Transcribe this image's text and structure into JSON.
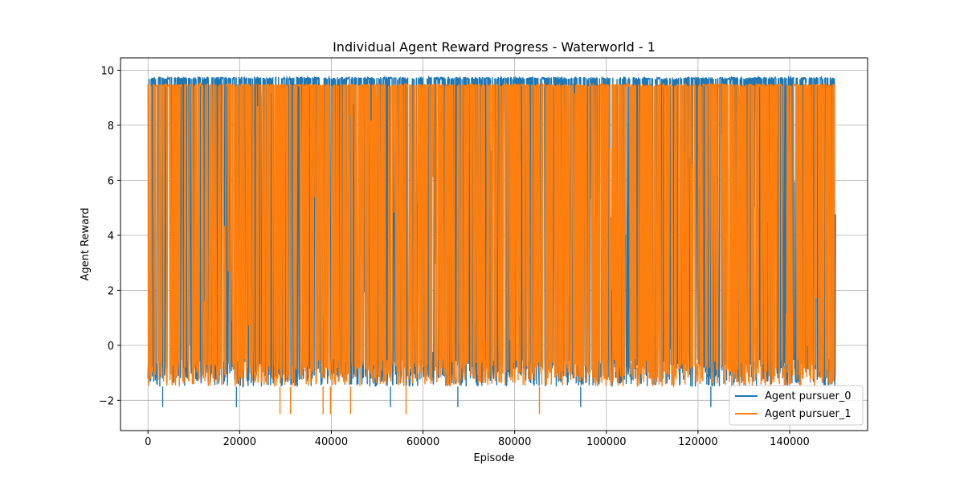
{
  "chart_data": {
    "type": "line",
    "title": "Individual Agent Reward Progress - Waterworld - 1",
    "xlabel": "Episode",
    "ylabel": "Agent Reward",
    "xlim": [
      -6000,
      157000
    ],
    "ylim": [
      -3.1,
      10.45
    ],
    "x_ticks": [
      0,
      20000,
      40000,
      60000,
      80000,
      100000,
      120000,
      140000
    ],
    "y_ticks": [
      -2,
      0,
      2,
      4,
      6,
      8,
      10
    ],
    "grid": true,
    "legend_position": "lower-right",
    "x_range": [
      0,
      150000
    ],
    "series": [
      {
        "name": "Agent pursuer_0",
        "color": "#1f77b4",
        "typical_max": 9.75,
        "typical_min": -1.5,
        "outliers": [
          [
            3200,
            -2.25
          ],
          [
            19300,
            -2.25
          ],
          [
            52900,
            -2.25
          ],
          [
            67600,
            -2.25
          ],
          [
            94400,
            -2.25
          ],
          [
            122800,
            -2.25
          ]
        ]
      },
      {
        "name": "Agent pursuer_1",
        "color": "#ff7f0e",
        "typical_max": 9.5,
        "typical_min": -1.5,
        "outliers": [
          [
            28800,
            -2.5
          ],
          [
            31100,
            -2.5
          ],
          [
            38200,
            -2.5
          ],
          [
            39800,
            -2.5
          ],
          [
            44200,
            -2.5
          ],
          [
            56300,
            -2.5
          ],
          [
            85400,
            -2.5
          ]
        ]
      }
    ]
  }
}
